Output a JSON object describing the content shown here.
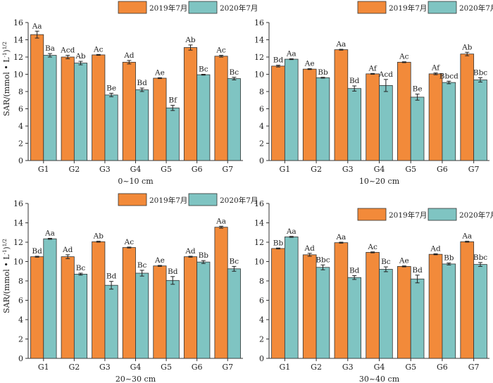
{
  "figure": {
    "ylabel_main": "SAR/(mmol • L",
    "ylabel_sup": "-1",
    "ylabel_end": ")",
    "ylabel_exp": "1/2"
  },
  "legend": {
    "series1": "2019年7月",
    "series2": "2020年7月"
  },
  "colors": {
    "series1": "#f28a3a",
    "series2": "#7fc4c2"
  },
  "chart_data": [
    {
      "type": "bar",
      "xlabel": "0~10 cm",
      "categories": [
        "G1",
        "G2",
        "G3",
        "G4",
        "G5",
        "G6",
        "G7"
      ],
      "ylim": [
        0,
        16
      ],
      "yticks": [
        0,
        2,
        4,
        6,
        8,
        10,
        12,
        14,
        16
      ],
      "series": [
        {
          "name": "2019年7月",
          "values": [
            14.6,
            12.0,
            12.25,
            11.4,
            9.55,
            13.1,
            12.1
          ],
          "errors": [
            0.4,
            0.2,
            0.05,
            0.2,
            0.05,
            0.3,
            0.1
          ],
          "labels": [
            "Aa",
            "Acd",
            "Ac",
            "Ad",
            "Ae",
            "Ab",
            "Ac"
          ]
        },
        {
          "name": "2020年7月",
          "values": [
            12.2,
            11.3,
            7.6,
            8.2,
            6.1,
            9.95,
            9.5
          ],
          "errors": [
            0.2,
            0.2,
            0.2,
            0.2,
            0.3,
            0.05,
            0.15
          ],
          "labels": [
            "Ba",
            "Ab",
            "Be",
            "Bd",
            "Bf",
            "Bc",
            "Bc"
          ]
        }
      ]
    },
    {
      "type": "bar",
      "xlabel": "10~20 cm",
      "categories": [
        "G1",
        "G2",
        "G3",
        "G4",
        "G5",
        "G6",
        "G7"
      ],
      "ylim": [
        0,
        16
      ],
      "yticks": [
        0,
        2,
        4,
        6,
        8,
        10,
        12,
        14,
        16
      ],
      "series": [
        {
          "name": "2019年7月",
          "values": [
            10.95,
            10.6,
            12.85,
            10.05,
            11.4,
            10.05,
            12.35
          ],
          "errors": [
            0.1,
            0.05,
            0.05,
            0.05,
            0.05,
            0.1,
            0.2
          ],
          "labels": [
            "Bd",
            "Ae",
            "Aa",
            "Af",
            "Ac",
            "Af",
            "Ab"
          ]
        },
        {
          "name": "2020年7月",
          "values": [
            11.75,
            9.6,
            8.35,
            8.7,
            7.35,
            9.05,
            9.35
          ],
          "errors": [
            0.05,
            0.05,
            0.3,
            0.7,
            0.35,
            0.15,
            0.25
          ],
          "labels": [
            "Aa",
            "Bb",
            "Bd",
            "Acd",
            "Be",
            "Bbcd",
            "Bbc"
          ]
        }
      ]
    },
    {
      "type": "bar",
      "xlabel": "20~30 cm",
      "categories": [
        "G1",
        "G2",
        "G3",
        "G4",
        "G5",
        "G6",
        "G7"
      ],
      "ylim": [
        0,
        16
      ],
      "yticks": [
        0,
        2,
        4,
        6,
        8,
        10,
        12,
        14,
        16
      ],
      "series": [
        {
          "name": "2019年7月",
          "values": [
            10.5,
            10.5,
            12.05,
            11.45,
            9.55,
            10.5,
            13.55
          ],
          "errors": [
            0.05,
            0.2,
            0.05,
            0.05,
            0.05,
            0.05,
            0.1
          ],
          "labels": [
            "Bd",
            "Ad",
            "Ab",
            "Ac",
            "Ae",
            "Ad",
            "Aa"
          ]
        },
        {
          "name": "2020年7月",
          "values": [
            12.35,
            8.7,
            7.55,
            8.8,
            8.05,
            9.95,
            9.25
          ],
          "errors": [
            0.05,
            0.1,
            0.4,
            0.3,
            0.4,
            0.15,
            0.25
          ],
          "labels": [
            "Aa",
            "Bc",
            "Bd",
            "Bc",
            "Bd",
            "Bb",
            "Bc"
          ]
        }
      ]
    },
    {
      "type": "bar",
      "xlabel": "30~40 cm",
      "categories": [
        "G1",
        "G2",
        "G3",
        "G4",
        "G5",
        "G6",
        "G7"
      ],
      "ylim": [
        0,
        16
      ],
      "yticks": [
        0,
        2,
        4,
        6,
        8,
        10,
        12,
        14,
        16
      ],
      "series": [
        {
          "name": "2019年7月",
          "values": [
            11.35,
            10.7,
            11.95,
            10.95,
            9.5,
            10.75,
            12.05
          ],
          "errors": [
            0.05,
            0.15,
            0.05,
            0.05,
            0.05,
            0.05,
            0.05
          ],
          "labels": [
            "Bb",
            "Ad",
            "Aa",
            "Ac",
            "Ae",
            "Ad",
            "Aa"
          ]
        },
        {
          "name": "2020年7月",
          "values": [
            12.55,
            9.4,
            8.35,
            9.2,
            8.2,
            9.75,
            9.7
          ],
          "errors": [
            0.05,
            0.25,
            0.2,
            0.25,
            0.4,
            0.1,
            0.2
          ],
          "labels": [
            "Aa",
            "Bbc",
            "Bd",
            "Bc",
            "Bd",
            "Bb",
            "Bbc"
          ]
        }
      ]
    }
  ]
}
